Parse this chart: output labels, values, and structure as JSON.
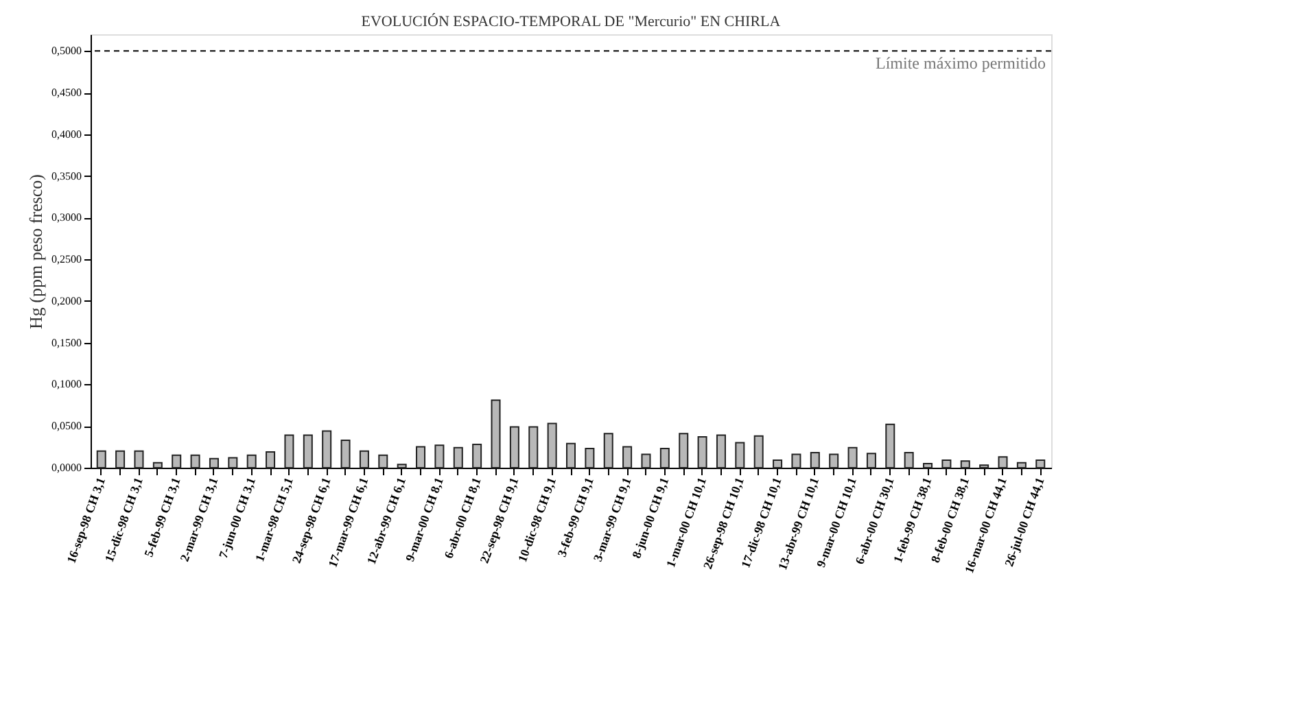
{
  "chart_data": {
    "type": "bar",
    "title": "EVOLUCIÓN ESPACIO-TEMPORAL DE \"Mercurio\" EN CHIRLA",
    "ylabel": "Hg (ppm peso fresco)",
    "categories": [
      "16-sep-98 CH 3,1",
      null,
      "15-dic-98 CH 3,1",
      null,
      "5-feb-99 CH 3,1",
      null,
      "2-mar-99 CH 3,1",
      null,
      "7-jun-00 CH 3,1",
      null,
      "1-mar-98 CH 5,1",
      null,
      "24-sep-98 CH 6,1",
      null,
      "17-mar-99 CH 6,1",
      null,
      "12-abr-99 CH 6,1",
      null,
      "9-mar-00 CH 8,1",
      null,
      "6-abr-00 CH 8,1",
      null,
      "22-sep-98 CH 9,1",
      null,
      "10-dic-98 CH 9,1",
      null,
      "3-feb-99 CH 9,1",
      null,
      "3-mar-99 CH 9,1",
      null,
      "8-jun-00 CH 9,1",
      null,
      "1-mar-00 CH 10,1",
      null,
      "26-sep-98 CH 10,1",
      null,
      "17-dic-98 CH 10,1",
      null,
      "13-abr-99 CH 10,1",
      null,
      "9-mar-00 CH 10,1",
      null,
      "6-abr-00 CH 30,1",
      null,
      "1-feb-99 CH 38,1",
      null,
      "8-feb-00 CH 38,1",
      null,
      "16-mar-00 CH 44,1",
      null,
      "26-jul-00 CH 44,1"
    ],
    "values": [
      0.02,
      0.02,
      0.02,
      0.006,
      0.015,
      0.015,
      0.011,
      0.012,
      0.015,
      0.019,
      0.039,
      0.039,
      0.044,
      0.033,
      0.02,
      0.015,
      0.004,
      0.025,
      0.027,
      0.024,
      0.028,
      0.081,
      0.049,
      0.049,
      0.053,
      0.029,
      0.023,
      0.041,
      0.025,
      0.016,
      0.023,
      0.041,
      0.037,
      0.039,
      0.03,
      0.038,
      0.009,
      0.016,
      0.018,
      0.016,
      0.024,
      0.017,
      0.052,
      0.018,
      0.005,
      0.009,
      0.008,
      0.003,
      0.013,
      0.006,
      0.009
    ],
    "color": "#b8b8b8",
    "ylim": [
      0,
      0.52
    ],
    "yticks": [
      {
        "value": 0,
        "label": "0,0000"
      },
      {
        "value": 0.05,
        "label": "0,0500"
      },
      {
        "value": 0.1,
        "label": "0,1000"
      },
      {
        "value": 0.15,
        "label": "0,1500"
      },
      {
        "value": 0.2,
        "label": "0,2000"
      },
      {
        "value": 0.25,
        "label": "0,2500"
      },
      {
        "value": 0.3,
        "label": "0,3000"
      },
      {
        "value": 0.35,
        "label": "0,3500"
      },
      {
        "value": 0.4,
        "label": "0,4000"
      },
      {
        "value": 0.45,
        "label": "0,4500"
      },
      {
        "value": 0.5,
        "label": "0,5000"
      }
    ],
    "ref_lines": [
      {
        "axis": "y",
        "value": 0.5,
        "label": "Límite máximo permitido",
        "color": "#000000",
        "line_style": "dashed"
      }
    ],
    "grid": false
  }
}
